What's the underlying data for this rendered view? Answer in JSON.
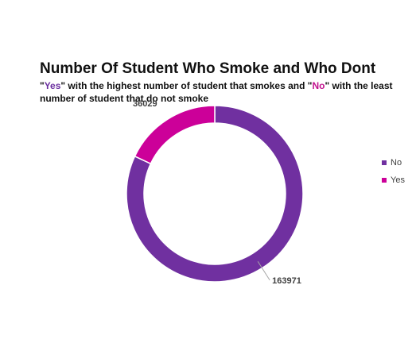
{
  "chart_data": {
    "type": "pie",
    "variant": "doughnut",
    "title": "Number Of Student Who Smoke and Who Dont",
    "subtitle": {
      "q": "\"",
      "yes_word": "Yes",
      "part1": "\" with the highest number of student that smokes and \"",
      "no_word": "No",
      "part2": "\" with the least number of student that do not smoke"
    },
    "categories": [
      "No",
      "Yes"
    ],
    "values": [
      163971,
      36029
    ],
    "colors": [
      "#7030a0",
      "#cc0099"
    ],
    "legend_position": "right"
  }
}
